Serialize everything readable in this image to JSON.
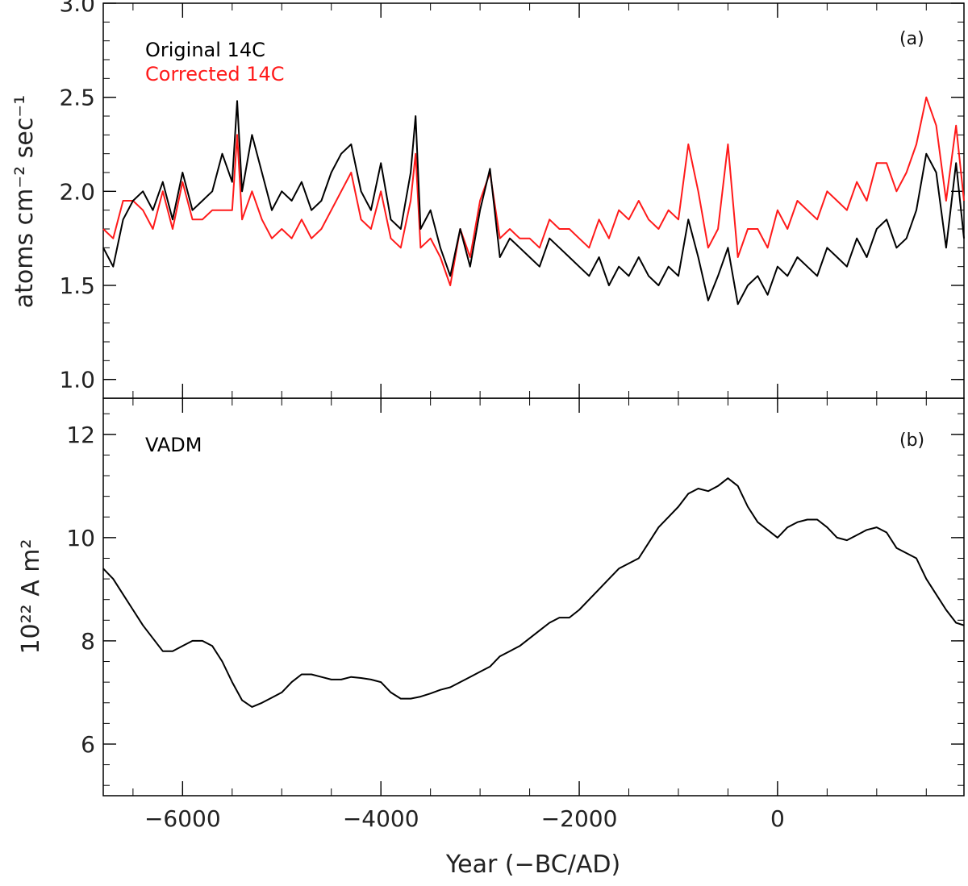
{
  "chart_data": [
    {
      "type": "line",
      "panel_label": "(a)",
      "xlabel": "Year (−BC/AD)",
      "ylabel": "atoms cm⁻² sec⁻¹",
      "xlim": [
        -6800,
        1880
      ],
      "ylim": [
        0.9,
        3.0
      ],
      "x_ticks": [
        -6000,
        -4000,
        -2000,
        0
      ],
      "y_ticks": [
        1.0,
        1.5,
        2.0,
        2.5,
        3.0
      ],
      "y_tick_labels": [
        "1.0",
        "1.5",
        "2.0",
        "2.5",
        "3.0"
      ],
      "legend": [
        "Original 14C",
        "Corrected 14C"
      ],
      "series": [
        {
          "name": "Original 14C",
          "color": "#000000",
          "x": [
            -6800,
            -6700,
            -6600,
            -6500,
            -6400,
            -6300,
            -6200,
            -6100,
            -6000,
            -5900,
            -5800,
            -5700,
            -5600,
            -5500,
            -5450,
            -5400,
            -5300,
            -5200,
            -5100,
            -5000,
            -4900,
            -4800,
            -4700,
            -4600,
            -4500,
            -4400,
            -4300,
            -4200,
            -4100,
            -4000,
            -3900,
            -3800,
            -3700,
            -3650,
            -3600,
            -3500,
            -3400,
            -3300,
            -3200,
            -3100,
            -3000,
            -2900,
            -2800,
            -2700,
            -2600,
            -2500,
            -2400,
            -2300,
            -2200,
            -2100,
            -2000,
            -1900,
            -1800,
            -1700,
            -1600,
            -1500,
            -1400,
            -1300,
            -1200,
            -1100,
            -1000,
            -900,
            -800,
            -700,
            -600,
            -500,
            -400,
            -300,
            -200,
            -100,
            0,
            100,
            200,
            300,
            400,
            500,
            600,
            700,
            800,
            900,
            1000,
            1100,
            1200,
            1300,
            1400,
            1500,
            1600,
            1700,
            1800,
            1880
          ],
          "y": [
            1.7,
            1.6,
            1.85,
            1.95,
            2.0,
            1.9,
            2.05,
            1.85,
            2.1,
            1.9,
            1.95,
            2.0,
            2.2,
            2.05,
            2.48,
            2.0,
            2.3,
            2.1,
            1.9,
            2.0,
            1.95,
            2.05,
            1.9,
            1.95,
            2.1,
            2.2,
            2.25,
            2.0,
            1.9,
            2.15,
            1.85,
            1.8,
            2.1,
            2.4,
            1.8,
            1.9,
            1.7,
            1.55,
            1.8,
            1.6,
            1.9,
            2.12,
            1.65,
            1.75,
            1.7,
            1.65,
            1.6,
            1.75,
            1.7,
            1.65,
            1.6,
            1.55,
            1.65,
            1.5,
            1.6,
            1.55,
            1.65,
            1.55,
            1.5,
            1.6,
            1.55,
            1.85,
            1.65,
            1.42,
            1.55,
            1.7,
            1.4,
            1.5,
            1.55,
            1.45,
            1.6,
            1.55,
            1.65,
            1.6,
            1.55,
            1.7,
            1.65,
            1.6,
            1.75,
            1.65,
            1.8,
            1.85,
            1.7,
            1.75,
            1.9,
            2.2,
            2.1,
            1.7,
            2.15,
            1.75
          ]
        },
        {
          "name": "Corrected 14C",
          "color": "#ff1a1a",
          "x": [
            -6800,
            -6700,
            -6600,
            -6500,
            -6400,
            -6300,
            -6200,
            -6100,
            -6000,
            -5900,
            -5800,
            -5700,
            -5600,
            -5500,
            -5450,
            -5400,
            -5300,
            -5200,
            -5100,
            -5000,
            -4900,
            -4800,
            -4700,
            -4600,
            -4500,
            -4400,
            -4300,
            -4200,
            -4100,
            -4000,
            -3900,
            -3800,
            -3700,
            -3650,
            -3600,
            -3500,
            -3400,
            -3300,
            -3200,
            -3100,
            -3000,
            -2900,
            -2800,
            -2700,
            -2600,
            -2500,
            -2400,
            -2300,
            -2200,
            -2100,
            -2000,
            -1900,
            -1800,
            -1700,
            -1600,
            -1500,
            -1400,
            -1300,
            -1200,
            -1100,
            -1000,
            -900,
            -800,
            -700,
            -600,
            -500,
            -400,
            -300,
            -200,
            -100,
            0,
            100,
            200,
            300,
            400,
            500,
            600,
            700,
            800,
            900,
            1000,
            1100,
            1200,
            1300,
            1400,
            1500,
            1600,
            1700,
            1800,
            1880
          ],
          "y": [
            1.8,
            1.75,
            1.95,
            1.95,
            1.9,
            1.8,
            2.0,
            1.8,
            2.05,
            1.85,
            1.85,
            1.9,
            1.9,
            1.9,
            2.3,
            1.85,
            2.0,
            1.85,
            1.75,
            1.8,
            1.75,
            1.85,
            1.75,
            1.8,
            1.9,
            2.0,
            2.1,
            1.85,
            1.8,
            2.0,
            1.75,
            1.7,
            1.95,
            2.2,
            1.7,
            1.75,
            1.65,
            1.5,
            1.8,
            1.65,
            1.95,
            2.1,
            1.75,
            1.8,
            1.75,
            1.75,
            1.7,
            1.85,
            1.8,
            1.8,
            1.75,
            1.7,
            1.85,
            1.75,
            1.9,
            1.85,
            1.95,
            1.85,
            1.8,
            1.9,
            1.85,
            2.25,
            2.0,
            1.7,
            1.8,
            2.25,
            1.65,
            1.8,
            1.8,
            1.7,
            1.9,
            1.8,
            1.95,
            1.9,
            1.85,
            2.0,
            1.95,
            1.9,
            2.05,
            1.95,
            2.15,
            2.15,
            2.0,
            2.1,
            2.25,
            2.5,
            2.35,
            1.95,
            2.35,
            1.95
          ]
        }
      ]
    },
    {
      "type": "line",
      "panel_label": "(b)",
      "xlabel": "Year (−BC/AD)",
      "ylabel": "10²² A m²",
      "xlim": [
        -6800,
        1880
      ],
      "ylim": [
        5.0,
        12.7
      ],
      "x_ticks": [
        -6000,
        -4000,
        -2000,
        0
      ],
      "x_tick_labels": [
        "−6000",
        "−4000",
        "−2000",
        "0"
      ],
      "y_ticks": [
        6,
        8,
        10,
        12
      ],
      "y_tick_labels": [
        "6",
        "8",
        "10",
        "12"
      ],
      "legend": [
        "VADM"
      ],
      "series": [
        {
          "name": "VADM",
          "color": "#000000",
          "x": [
            -6800,
            -6700,
            -6600,
            -6500,
            -6400,
            -6300,
            -6200,
            -6100,
            -6000,
            -5900,
            -5800,
            -5700,
            -5600,
            -5500,
            -5400,
            -5300,
            -5200,
            -5100,
            -5000,
            -4900,
            -4800,
            -4700,
            -4600,
            -4500,
            -4400,
            -4300,
            -4200,
            -4100,
            -4000,
            -3900,
            -3800,
            -3700,
            -3600,
            -3500,
            -3400,
            -3300,
            -3200,
            -3100,
            -3000,
            -2900,
            -2800,
            -2700,
            -2600,
            -2500,
            -2400,
            -2300,
            -2200,
            -2100,
            -2000,
            -1900,
            -1800,
            -1700,
            -1600,
            -1500,
            -1400,
            -1300,
            -1200,
            -1100,
            -1000,
            -900,
            -800,
            -700,
            -600,
            -500,
            -400,
            -300,
            -200,
            -100,
            0,
            100,
            200,
            300,
            400,
            500,
            600,
            700,
            800,
            900,
            1000,
            1100,
            1200,
            1300,
            1400,
            1500,
            1600,
            1700,
            1800,
            1880
          ],
          "y": [
            9.4,
            9.2,
            8.9,
            8.6,
            8.3,
            8.05,
            7.8,
            7.8,
            7.9,
            8.0,
            8.0,
            7.9,
            7.6,
            7.2,
            6.85,
            6.72,
            6.8,
            6.9,
            7.0,
            7.2,
            7.35,
            7.35,
            7.3,
            7.25,
            7.25,
            7.3,
            7.28,
            7.25,
            7.2,
            7.0,
            6.88,
            6.88,
            6.92,
            6.98,
            7.05,
            7.1,
            7.2,
            7.3,
            7.4,
            7.5,
            7.7,
            7.8,
            7.9,
            8.05,
            8.2,
            8.35,
            8.45,
            8.45,
            8.6,
            8.8,
            9.0,
            9.2,
            9.4,
            9.5,
            9.6,
            9.9,
            10.2,
            10.4,
            10.6,
            10.85,
            10.95,
            10.9,
            11.0,
            11.15,
            11.0,
            10.6,
            10.3,
            10.15,
            10.0,
            10.2,
            10.3,
            10.35,
            10.35,
            10.2,
            10.0,
            9.95,
            10.05,
            10.15,
            10.2,
            10.1,
            9.8,
            9.7,
            9.6,
            9.2,
            8.9,
            8.6,
            8.35,
            8.3
          ]
        }
      ]
    }
  ]
}
